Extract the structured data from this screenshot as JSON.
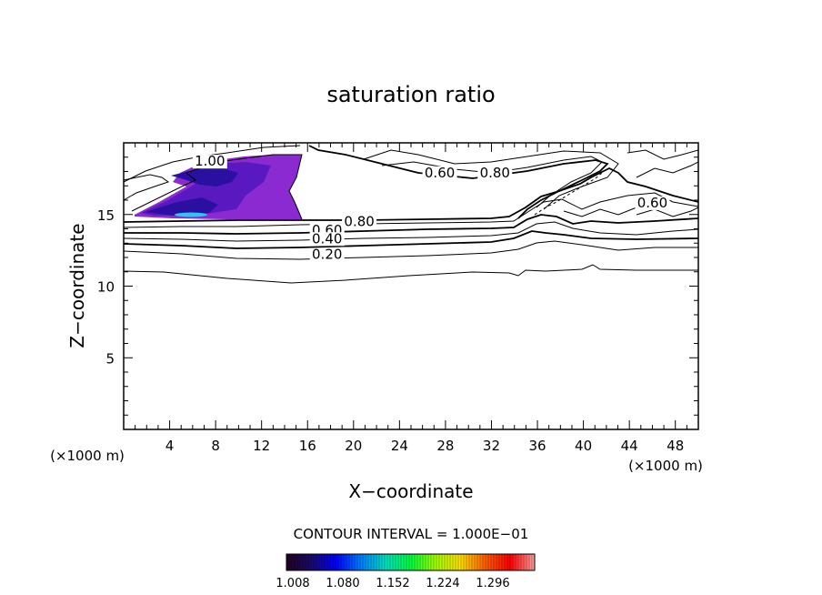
{
  "chart_data": {
    "type": "contour",
    "title": "saturation ratio",
    "xlabel": "X−coordinate",
    "ylabel": "Z−coordinate",
    "x_unit": "(×1000 m)",
    "x_unit_right": "(×1000 m)",
    "xlim": [
      0,
      50
    ],
    "ylim": [
      0,
      20
    ],
    "x_ticks": [
      4,
      8,
      12,
      16,
      20,
      24,
      28,
      32,
      36,
      40,
      44,
      48
    ],
    "y_ticks": [
      5,
      10,
      15
    ],
    "contour_interval": "CONTOUR INTERVAL = 1.000E−01",
    "contour_labels": [
      {
        "text": "1.00",
        "x": 7.5,
        "y": 18.4
      },
      {
        "text": "0.60",
        "x": 27.5,
        "y": 17.6
      },
      {
        "text": "0.80",
        "x": 32.3,
        "y": 17.6
      },
      {
        "text": "0.60",
        "x": 46.0,
        "y": 15.5
      },
      {
        "text": "0.80",
        "x": 20.5,
        "y": 14.2
      },
      {
        "text": "0.60",
        "x": 17.7,
        "y": 13.6
      },
      {
        "text": "0.40",
        "x": 17.7,
        "y": 13.0
      },
      {
        "text": "0.20",
        "x": 17.7,
        "y": 11.9
      }
    ],
    "filled_region": {
      "min": 1.008,
      "max": 1.3,
      "x_range": [
        1.3,
        15.5
      ],
      "z_range": [
        14.8,
        19.0
      ]
    },
    "colorbar": {
      "ticks": [
        "1.008",
        "1.080",
        "1.152",
        "1.224",
        "1.296"
      ],
      "colors": [
        "#220022",
        "#1a0a6a",
        "#0000ff",
        "#0080ff",
        "#00e0c0",
        "#00ff40",
        "#a0ff00",
        "#ffe000",
        "#ff6000",
        "#ff0000",
        "#ffa0a0"
      ]
    },
    "palette": {
      "fill_dark": "#2a0fa0",
      "fill_mid": "#5a18c0",
      "fill_light": "#8a2ad0",
      "cyan_spot": "#29c8f0"
    }
  }
}
